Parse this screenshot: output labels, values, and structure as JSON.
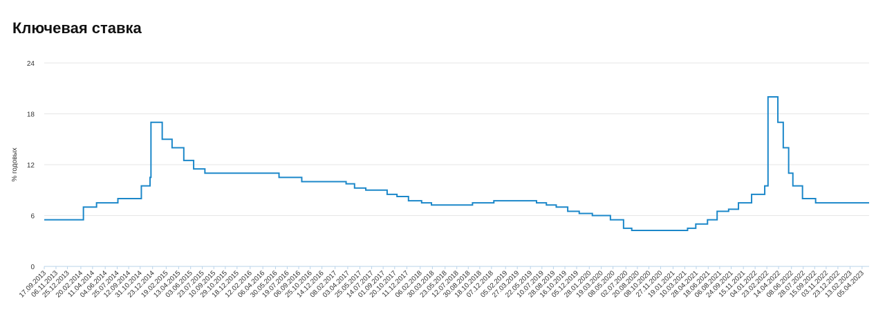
{
  "chart_data": {
    "type": "line",
    "step": true,
    "title": "Ключевая ставка",
    "y_label": "% годовых",
    "color": "#1b87c9",
    "grid": true,
    "x": [
      "17.09.2013",
      "03.03.2014",
      "28.04.2014",
      "28.07.2014",
      "05.11.2014",
      "12.12.2014",
      "16.12.2014",
      "02.02.2015",
      "16.03.2015",
      "05.05.2015",
      "16.06.2015",
      "03.08.2015",
      "14.06.2016",
      "19.09.2016",
      "27.03.2017",
      "02.05.2017",
      "19.06.2017",
      "18.09.2017",
      "30.10.2017",
      "18.12.2017",
      "12.02.2018",
      "26.03.2018",
      "17.09.2018",
      "17.12.2018",
      "17.06.2019",
      "29.07.2019",
      "09.09.2019",
      "28.10.2019",
      "16.12.2019",
      "10.02.2020",
      "27.04.2020",
      "22.06.2020",
      "27.07.2020",
      "22.03.2021",
      "26.04.2021",
      "15.06.2021",
      "26.07.2021",
      "13.09.2021",
      "25.10.2021",
      "20.12.2021",
      "14.02.2022",
      "28.02.2022",
      "11.04.2022",
      "04.05.2022",
      "27.05.2022",
      "14.06.2022",
      "25.07.2022",
      "19.09.2022",
      "05.05.2023"
    ],
    "values": [
      5.5,
      7.0,
      7.5,
      8.0,
      9.5,
      10.5,
      17.0,
      15.0,
      14.0,
      12.5,
      11.5,
      11.0,
      10.5,
      10.0,
      9.75,
      9.25,
      9.0,
      8.5,
      8.25,
      7.75,
      7.5,
      7.25,
      7.5,
      7.75,
      7.5,
      7.25,
      7.0,
      6.5,
      6.25,
      6.0,
      5.5,
      4.5,
      4.25,
      4.5,
      5.0,
      5.5,
      6.5,
      6.75,
      7.5,
      8.5,
      9.5,
      20.0,
      17.0,
      14.0,
      11.0,
      9.5,
      8.0,
      7.5,
      7.5
    ],
    "xlim": [
      "17.09.2013",
      "05.05.2023"
    ],
    "xticks": [
      "17.09.2013",
      "06.11.2013",
      "25.12.2013",
      "20.02.2014",
      "11.04.2014",
      "04.06.2014",
      "25.07.2014",
      "12.09.2014",
      "31.10.2014",
      "23.12.2014",
      "19.02.2015",
      "13.04.2015",
      "03.06.2015",
      "23.07.2015",
      "10.09.2015",
      "29.10.2015",
      "18.12.2015",
      "12.02.2016",
      "06.04.2016",
      "30.05.2016",
      "19.07.2016",
      "06.09.2016",
      "25.10.2016",
      "14.12.2016",
      "08.02.2017",
      "03.04.2017",
      "25.05.2017",
      "14.07.2017",
      "01.09.2017",
      "20.10.2017",
      "11.12.2017",
      "06.02.2018",
      "30.03.2018",
      "23.05.2018",
      "12.07.2018",
      "30.08.2018",
      "18.10.2018",
      "07.12.2018",
      "05.02.2019",
      "27.03.2019",
      "22.05.2019",
      "10.07.2019",
      "28.08.2019",
      "16.10.2019",
      "05.12.2019",
      "28.01.2020",
      "19.03.2020",
      "08.05.2020",
      "02.07.2020",
      "20.08.2020",
      "08.10.2020",
      "27.11.2020",
      "19.01.2021",
      "10.03.2021",
      "28.04.2021",
      "18.06.2021",
      "06.08.2021",
      "24.09.2021",
      "15.11.2021",
      "04.01.2022",
      "23.02.2022",
      "14.04.2022",
      "08.06.2022",
      "28.07.2022",
      "15.09.2022",
      "03.11.2022",
      "23.12.2022",
      "13.02.2023",
      "05.04.2023"
    ],
    "ylim": [
      0,
      24
    ],
    "yticks": [
      0,
      6,
      12,
      18,
      24
    ]
  }
}
